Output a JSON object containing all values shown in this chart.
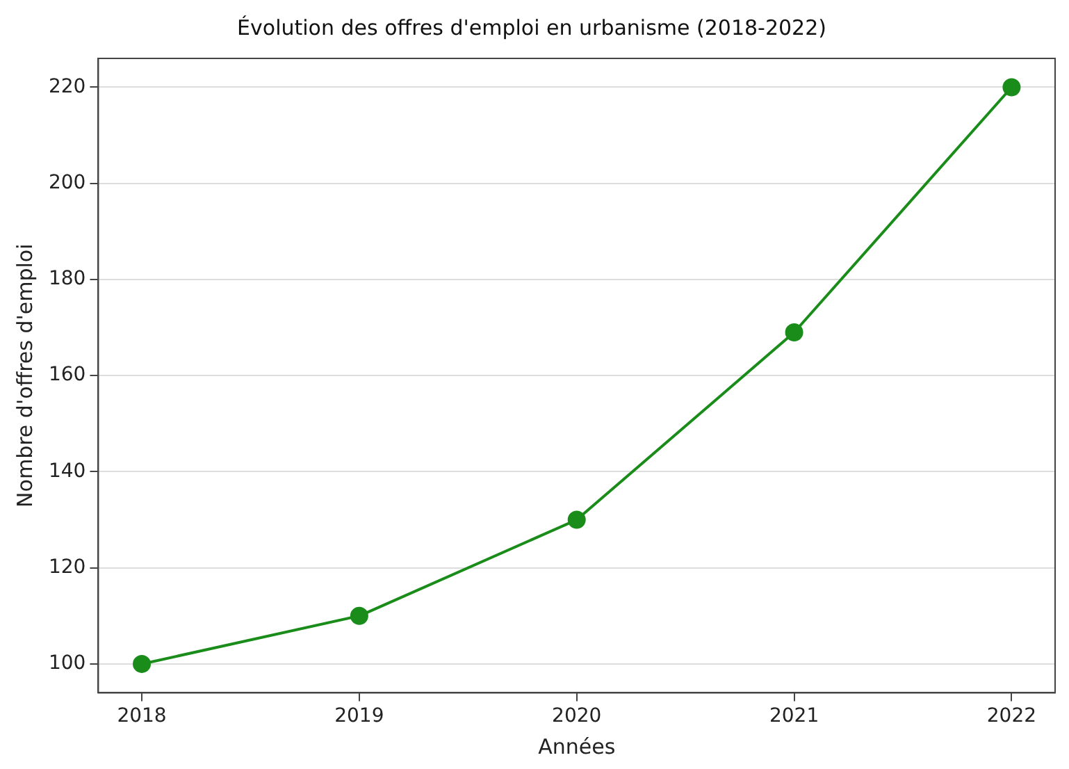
{
  "chart_data": {
    "type": "line",
    "title": "Évolution des offres d'emploi en urbanisme (2018-2022)",
    "xlabel": "Années",
    "ylabel": "Nombre d'offres d'emploi",
    "x": [
      2018,
      2019,
      2020,
      2021,
      2022
    ],
    "series": [
      {
        "color": "#1a8c1a",
        "values": [
          100,
          110,
          130,
          169,
          220
        ]
      }
    ],
    "xlim": [
      2017.8,
      2022.2
    ],
    "xticks": [
      2018,
      2019,
      2020,
      2021,
      2022
    ],
    "ylim": [
      94,
      226
    ],
    "yticks": [
      100,
      120,
      140,
      160,
      180,
      200,
      220
    ],
    "grid": "y",
    "marker": "circle",
    "line_style": "solid",
    "legend": false
  }
}
